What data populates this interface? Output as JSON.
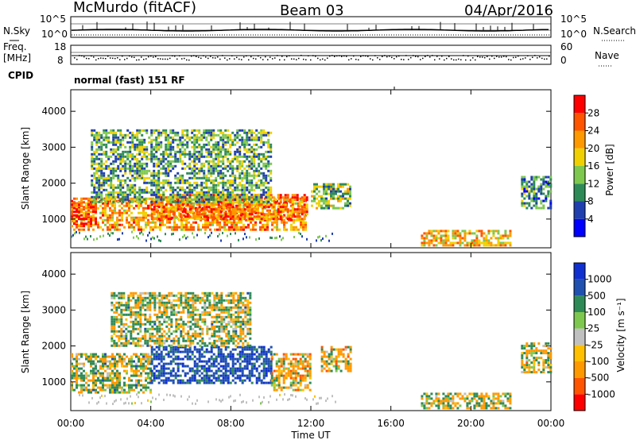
{
  "header": {
    "station": "McMurdo (fitACF)",
    "beam": "Beam 03",
    "date": "04/Apr/2016"
  },
  "top_panels": {
    "nsky_label": "N.Sky",
    "nsearch_label": "N.Search",
    "noise_ticks": [
      "10^5",
      "10^0"
    ],
    "freq_label": "Freq.",
    "freq_unit": "[MHz]",
    "freq_ticks": [
      "18",
      "8"
    ],
    "nave_label": "Nave",
    "nave_ticks": [
      "60",
      "0"
    ],
    "cpid_label": "CPID",
    "cpid_value": "normal (fast) 151 RF"
  },
  "colors": {
    "power_scale": [
      "#0000ff",
      "#2040b0",
      "#2e8b57",
      "#7ec850",
      "#f0d000",
      "#ff9900",
      "#ff5500",
      "#ff0000"
    ],
    "velocity_scale": [
      "#ff0000",
      "#ff5500",
      "#ff9900",
      "#ffc000",
      "#c0c0c0",
      "#7ec850",
      "#2e8b57",
      "#2050b0",
      "#1030d0"
    ]
  },
  "chart_data": [
    {
      "type": "heatmap",
      "title": "",
      "ylabel": "Slant Range [km]",
      "yticks": [
        "1000",
        "2000",
        "3000",
        "4000"
      ],
      "ylim": [
        200,
        4600
      ],
      "xlim": [
        0,
        24
      ],
      "colorbar_label": "Power [dB]",
      "colorbar_ticks": [
        "4",
        "8",
        "12",
        "16",
        "20",
        "24",
        "28"
      ],
      "regions": [
        {
          "t0": 0.0,
          "t1": 11.8,
          "r0": 700,
          "r1": 1600,
          "value": 22
        },
        {
          "t0": 0.0,
          "t1": 1.2,
          "r0": 800,
          "r1": 1500,
          "value": 28
        },
        {
          "t0": 4.0,
          "t1": 11.8,
          "r0": 1000,
          "r1": 1700,
          "value": 24
        },
        {
          "t0": 1.0,
          "t1": 10.0,
          "r0": 1500,
          "r1": 3500,
          "value": 12
        },
        {
          "t0": 12.0,
          "t1": 14.0,
          "r0": 1300,
          "r1": 2000,
          "value": 14
        },
        {
          "t0": 22.5,
          "t1": 24.0,
          "r0": 1300,
          "r1": 2200,
          "value": 10
        },
        {
          "t0": 17.5,
          "t1": 22.0,
          "r0": 300,
          "r1": 700,
          "value": 20
        }
      ]
    },
    {
      "type": "heatmap",
      "title": "",
      "ylabel": "Slant Range [km]",
      "yticks": [
        "1000",
        "2000",
        "3000",
        "4000"
      ],
      "ylim": [
        200,
        4600
      ],
      "xlim": [
        0,
        24
      ],
      "xlabel": "Time UT",
      "xticks": [
        "00:00",
        "04:00",
        "08:00",
        "12:00",
        "16:00",
        "20:00",
        "00:00"
      ],
      "colorbar_label": "Velocity [m s⁻¹]",
      "colorbar_ticks": [
        "1000",
        "500",
        "100",
        "25",
        "-25",
        "-100",
        "-500",
        "-1000"
      ],
      "regions": [
        {
          "t0": 0.0,
          "t1": 4.0,
          "r0": 700,
          "r1": 1800,
          "value": 80
        },
        {
          "t0": 4.0,
          "t1": 10.0,
          "r0": 1000,
          "r1": 2000,
          "value": 800
        },
        {
          "t0": 10.0,
          "t1": 12.0,
          "r0": 800,
          "r1": 1800,
          "value": -200
        },
        {
          "t0": 2.0,
          "t1": 9.0,
          "r0": 2000,
          "r1": 3500,
          "value": 60
        },
        {
          "t0": 12.5,
          "t1": 14.0,
          "r0": 1300,
          "r1": 2000,
          "value": -150
        },
        {
          "t0": 22.5,
          "t1": 24.0,
          "r0": 1300,
          "r1": 2100,
          "value": -80
        },
        {
          "t0": 17.5,
          "t1": 22.0,
          "r0": 300,
          "r1": 700,
          "value": -30
        }
      ]
    }
  ],
  "axes_labels": {
    "xlabel": "Time UT"
  }
}
